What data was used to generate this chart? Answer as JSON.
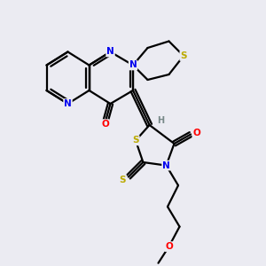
{
  "bg_color": "#ebebf2",
  "atom_colors": {
    "C": "#000000",
    "N": "#0000ee",
    "O": "#ff0000",
    "S": "#bbaa00",
    "H": "#778888"
  },
  "bond_color": "#000000",
  "bond_width": 1.6,
  "dbo": 0.08
}
